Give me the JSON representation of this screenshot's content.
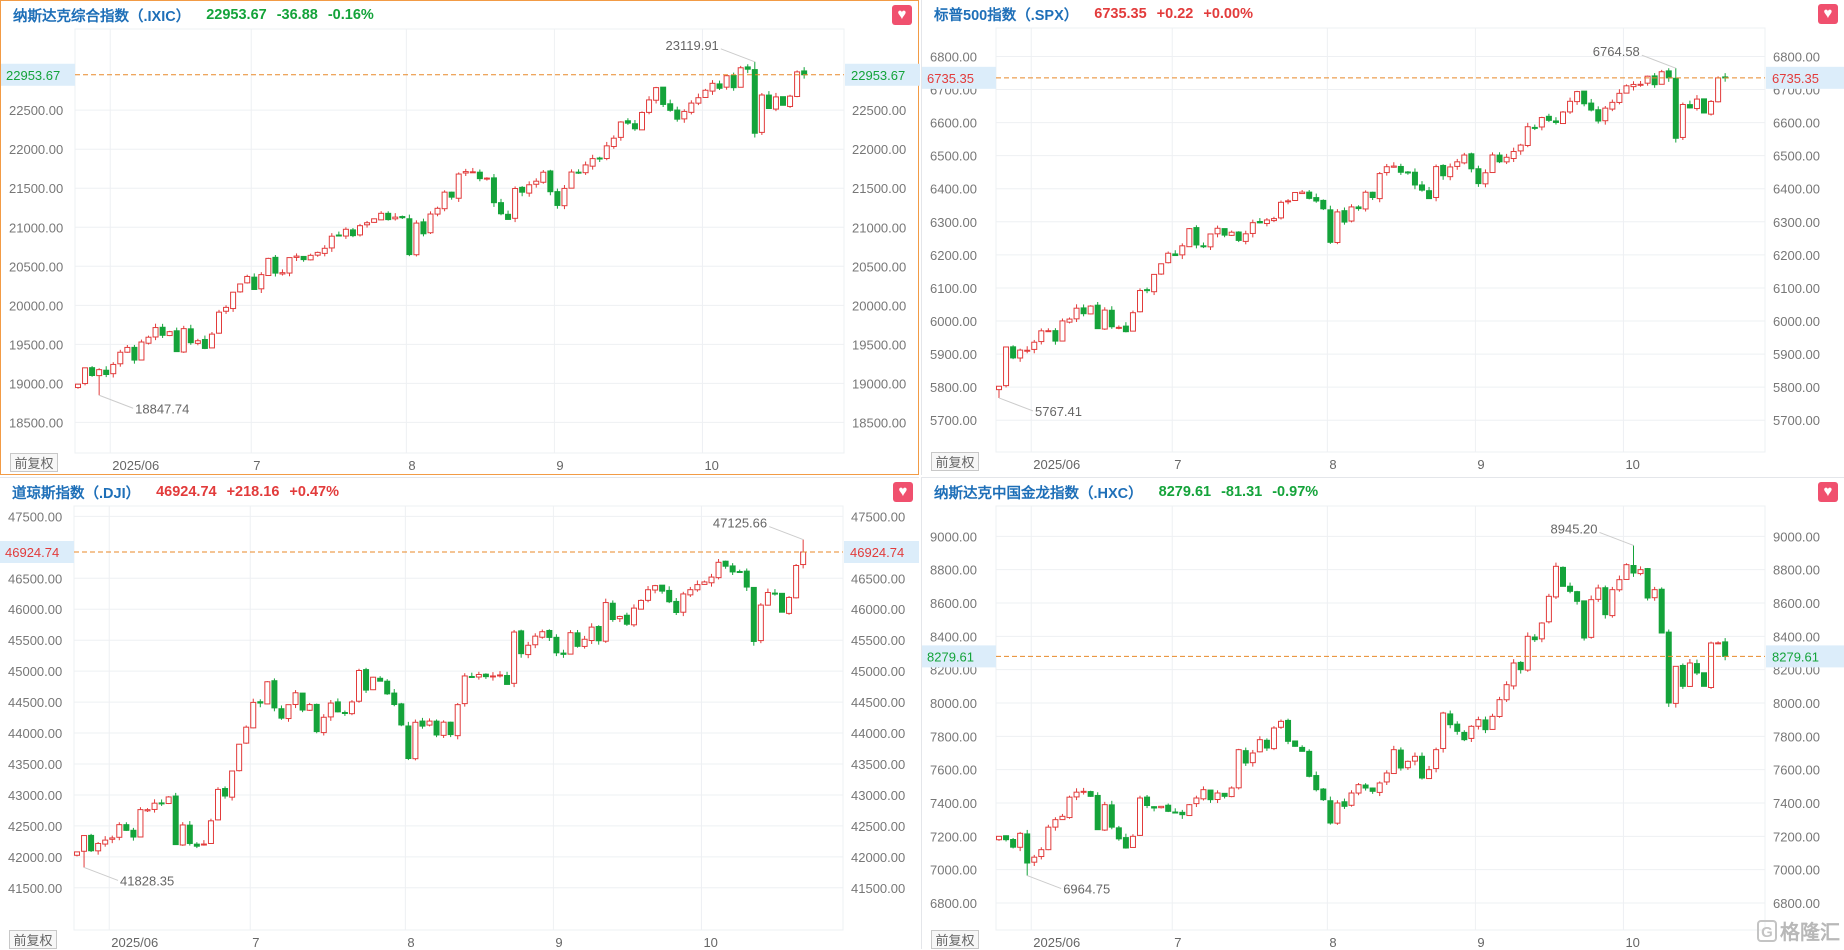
{
  "colors": {
    "up": "#e23b3b",
    "down": "#14a33a",
    "title": "#1e6fb8",
    "price_line": "#e8892a",
    "price_tag_bg": "#dcedfa",
    "selected_border": "#f29b45"
  },
  "adjust_label": "前复权",
  "watermark": {
    "icon": "G",
    "text": "格隆汇"
  },
  "x_ticks": [
    {
      "label": "2025/06",
      "index": 5
    },
    {
      "label": "7",
      "index": 25
    },
    {
      "label": "8",
      "index": 47
    },
    {
      "label": "9",
      "index": 68
    },
    {
      "label": "10",
      "index": 89
    }
  ],
  "panels": [
    {
      "title": "纳斯达克综合指数（.IXIC）",
      "price": "22953.67",
      "change": "-36.88",
      "pct": "-0.16%",
      "direction": "down",
      "favorite_icon": "heart-icon",
      "selected": true
    },
    {
      "title": "标普500指数（.SPX）",
      "price": "6735.35",
      "change": "+0.22",
      "pct": "+0.00%",
      "direction": "up",
      "favorite_icon": "heart-icon",
      "selected": false
    },
    {
      "title": "道琼斯指数（.DJI）",
      "price": "46924.74",
      "change": "+218.16",
      "pct": "+0.47%",
      "direction": "up",
      "favorite_icon": "heart-icon",
      "selected": false
    },
    {
      "title": "纳斯达克中国金龙指数（.HXC）",
      "price": "8279.61",
      "change": "-81.31",
      "pct": "-0.97%",
      "direction": "down",
      "favorite_icon": "heart-icon",
      "selected": false
    }
  ],
  "chart_data": [
    {
      "type": "candlestick",
      "ylim": [
        18108,
        23540
      ],
      "grid": true,
      "y_ticks": [
        "18500.00",
        "19000.00",
        "19500.00",
        "20000.00",
        "20500.00",
        "21000.00",
        "21500.00",
        "22000.00",
        "22500.00"
      ],
      "last_price": "22953.67",
      "direction": "down",
      "high_mark": {
        "value": "23119.91",
        "index": 96
      },
      "low_mark": {
        "value": "18847.74",
        "index": 3
      },
      "closes": [
        18990,
        19199.16,
        19100.94,
        19175.87,
        19113.77,
        19242.61,
        19398.96,
        19460.49,
        19298.45,
        19529.95,
        19591.24,
        19714.99,
        19615.88,
        19662.49,
        19406.83,
        19701.21,
        19521.09,
        19546.27,
        19447.41,
        19630.97,
        19912.53,
        19973.55,
        20167.91,
        20273.46,
        20369.73,
        20202.89,
        20393.13,
        20601.1,
        20412.52,
        20418.46,
        20611.34,
        20630.67,
        20585.53,
        20640.33,
        20677.8,
        20730.49,
        20885.65,
        20895.66,
        20974.17,
        20892.69,
        21020.02,
        21057.96,
        21108.32,
        21178.58,
        21098.29,
        21129.67,
        21122.45,
        20650.13,
        21053.58,
        20916.55,
        21169.42,
        21242.7,
        21450.02,
        21385.4,
        21681.9,
        21713.14,
        21710.67,
        21622.98,
        21629.77,
        21314.95,
        21172.86,
        21100.31,
        21496.54,
        21449.29,
        21544.27,
        21590.14,
        21705.16,
        21455.55,
        21279.63,
        21497.73,
        21707.69,
        21700.39,
        21798.7,
        21879.49,
        21886.06,
        22043.07,
        22141.1,
        22348.75,
        22333.96,
        22261.33,
        22470.73,
        22631.48,
        22788.98,
        22573.47,
        22497.86,
        22384.7,
        22484.07,
        22591.15,
        22660.01,
        22755.16,
        22844.05,
        22780.51,
        22941.67,
        22788.36,
        23043.38,
        23024.63,
        22204.43,
        22694.61,
        22521.7,
        22670.08,
        22562.54,
        22679.97,
        22990.54,
        22953.67
      ]
    },
    {
      "type": "candlestick",
      "ylim": [
        5604,
        6886
      ],
      "grid": true,
      "y_ticks": [
        "5700.00",
        "5800.00",
        "5900.00",
        "6000.00",
        "6100.00",
        "6200.00",
        "6300.00",
        "6400.00",
        "6500.00",
        "6600.00",
        "6700.00",
        "6800.00"
      ],
      "last_price": "6735.35",
      "direction": "up",
      "high_mark": {
        "value": "6764.58",
        "index": 96
      },
      "low_mark": {
        "value": "5767.41",
        "index": 0
      },
      "closes": [
        5802.82,
        5921.54,
        5888.55,
        5912.17,
        5911.69,
        5935.94,
        5970.37,
        5970.81,
        5939.3,
        6000.36,
        6005.88,
        6038.81,
        6022.24,
        6045.26,
        5976.97,
        6033.11,
        5982.72,
        5980.87,
        5967.84,
        6025.17,
        6092.18,
        6092.16,
        6141.02,
        6173.07,
        6204.95,
        6198.01,
        6227.42,
        6279.35,
        6229.98,
        6225.52,
        6263.26,
        6280.46,
        6259.75,
        6268.56,
        6243.76,
        6263.7,
        6297.36,
        6296.79,
        6305.6,
        6309.62,
        6358.91,
        6363.35,
        6388.64,
        6389.77,
        6370.86,
        6362.9,
        6339.39,
        6238.01,
        6329.94,
        6299.19,
        6345.06,
        6340.0,
        6389.45,
        6373.45,
        6445.76,
        6466.58,
        6468.54,
        6449.8,
        6449.15,
        6411.37,
        6395.78,
        6370.17,
        6466.91,
        6439.32,
        6465.94,
        6481.4,
        6501.86,
        6460.26,
        6415.54,
        6448.26,
        6502.08,
        6481.5,
        6495.15,
        6512.61,
        6532.04,
        6587.47,
        6584.29,
        6615.28,
        6606.76,
        6600.35,
        6631.96,
        6664.36,
        6693.75,
        6656.92,
        6637.97,
        6604.72,
        6643.7,
        6661.21,
        6688.46,
        6711.2,
        6715.35,
        6715.79,
        6740.28,
        6714.59,
        6753.72,
        6735.11,
        6552.51,
        6654.72,
        6644.31,
        6671.06,
        6629.07,
        6664.01,
        6735.13,
        6735.35
      ]
    },
    {
      "type": "candlestick",
      "ylim": [
        40818,
        47668
      ],
      "grid": true,
      "y_ticks": [
        "41500.00",
        "42000.00",
        "42500.00",
        "43000.00",
        "43500.00",
        "44000.00",
        "44500.00",
        "45000.00",
        "45500.00",
        "46000.00",
        "46500.00",
        "47500.00"
      ],
      "last_price": "46924.74",
      "direction": "up",
      "high_mark": {
        "value": "47125.66",
        "index": 103
      },
      "low_mark": {
        "value": "41828.35",
        "index": 1
      },
      "closes": [
        42080,
        42343.65,
        42098.7,
        42215.73,
        42270.07,
        42305.48,
        42519.64,
        42427.74,
        42319.74,
        42762.87,
        42761.76,
        42866.87,
        42865.77,
        42967.62,
        42197.79,
        42515.09,
        42215.8,
        42171.66,
        42206.82,
        42581.78,
        43089.02,
        42982.43,
        43386.84,
        43819.27,
        44094.77,
        44494.94,
        44484.42,
        44828.53,
        44406.36,
        44240.76,
        44458.3,
        44650.64,
        44371.51,
        44459.65,
        44023.29,
        44254.78,
        44484.49,
        44342.19,
        44323.07,
        44502.44,
        45010.29,
        44693.91,
        44901.92,
        44837.56,
        44632.99,
        44461.28,
        44130.98,
        43588.58,
        44173.64,
        44111.74,
        44193.12,
        43968.64,
        44175.61,
        43975.09,
        44458.61,
        44922.27,
        44911.82,
        44946.12,
        44911.26,
        44922.27,
        44938.31,
        44785.5,
        45631.74,
        45282.47,
        45418.07,
        45565.23,
        45636.9,
        45544.88,
        45295.81,
        45271.23,
        45621.29,
        45400.86,
        45514.95,
        45711.34,
        45490.92,
        46108.0,
        45834.22,
        45883.45,
        45757.9,
        46018.32,
        46142.42,
        46315.27,
        46381.54,
        46292.78,
        46121.28,
        45947.32,
        46247.29,
        46316.07,
        46397.89,
        46441.1,
        46519.72,
        46758.28,
        46694.97,
        46602.98,
        46601.78,
        46358.42,
        45479.6,
        46067.58,
        46270.46,
        46253.31,
        45952.24,
        46190.61,
        46706.58,
        46924.74
      ]
    },
    {
      "type": "candlestick",
      "ylim": [
        6638,
        9182
      ],
      "grid": true,
      "y_ticks": [
        "6800.00",
        "7000.00",
        "7200.00",
        "7400.00",
        "7600.00",
        "7800.00",
        "8000.00",
        "8200.00",
        "8400.00",
        "8600.00",
        "8800.00",
        "9000.00"
      ],
      "last_price": "8279.61",
      "direction": "down",
      "high_mark": {
        "value": "8945.20",
        "index": 90
      },
      "low_mark": {
        "value": "6964.75",
        "index": 4
      },
      "closes": [
        7200,
        7180,
        7135,
        7218,
        7040,
        7075,
        7120,
        7255,
        7300,
        7320,
        7435,
        7465,
        7470,
        7440,
        7240,
        7390,
        7255,
        7185,
        7130,
        7200,
        7430,
        7385,
        7370,
        7380,
        7350,
        7340,
        7330,
        7390,
        7430,
        7480,
        7420,
        7460,
        7440,
        7490,
        7720,
        7640,
        7700,
        7780,
        7730,
        7850,
        7890,
        7770,
        7740,
        7710,
        7560,
        7480,
        7420,
        7280,
        7400,
        7380,
        7460,
        7510,
        7490,
        7470,
        7520,
        7580,
        7720,
        7610,
        7650,
        7680,
        7550,
        7600,
        7720,
        7940,
        7870,
        7830,
        7780,
        7860,
        7900,
        7840,
        7920,
        8020,
        8110,
        8240,
        8200,
        8400,
        8380,
        8480,
        8640,
        8820,
        8700,
        8670,
        8610,
        8390,
        8620,
        8690,
        8530,
        8680,
        8740,
        8830,
        8780,
        8800,
        8630,
        8680,
        8420,
        8000,
        8220,
        8100,
        8240,
        8180,
        8100,
        8360,
        8360.92,
        8279.61
      ]
    }
  ]
}
